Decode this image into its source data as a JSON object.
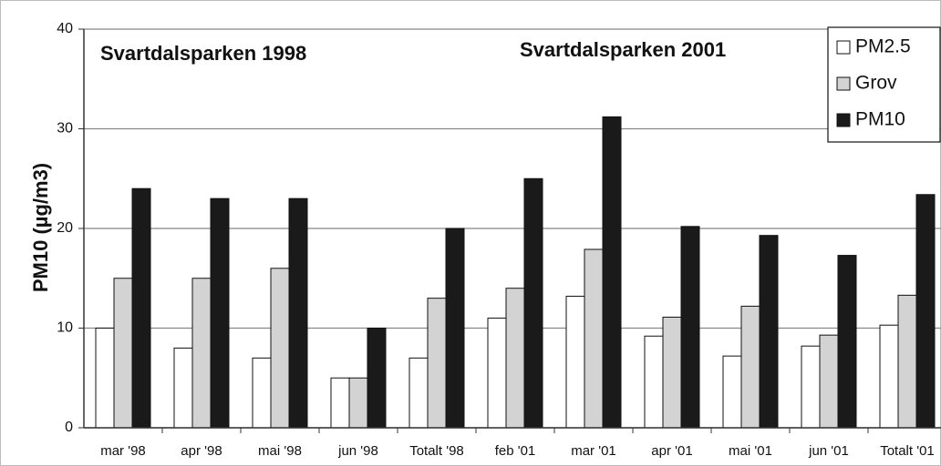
{
  "chart_data": {
    "type": "bar",
    "annotations": [
      "Svartdalsparken 1998",
      "Svartdalsparken 2001"
    ],
    "y_label": "PM10 (µg/m3)",
    "categories": [
      "mar '98",
      "apr '98",
      "mai '98",
      "jun '98",
      "Totalt '98",
      "feb '01",
      "mar '01",
      "apr '01",
      "mai '01",
      "jun '01",
      "Totalt '01"
    ],
    "series": [
      {
        "name": "PM2.5",
        "color": "#ffffff",
        "values": [
          10,
          8,
          7,
          5,
          7,
          11,
          13.2,
          9.2,
          7.2,
          8.2,
          10.3
        ]
      },
      {
        "name": "Grov",
        "color": "#d3d3d3",
        "values": [
          15,
          15,
          16,
          5,
          13,
          14,
          17.9,
          11.1,
          12.2,
          9.3,
          13.3
        ]
      },
      {
        "name": "PM10",
        "color": "#1a1a1a",
        "values": [
          24,
          23,
          23,
          10,
          20,
          25,
          31.2,
          20.2,
          19.3,
          17.3,
          23.4
        ]
      }
    ],
    "ylim": [
      0,
      40
    ],
    "yticks": [
      0,
      10,
      20,
      30,
      40
    ],
    "grid": true,
    "legend": "upper right"
  }
}
